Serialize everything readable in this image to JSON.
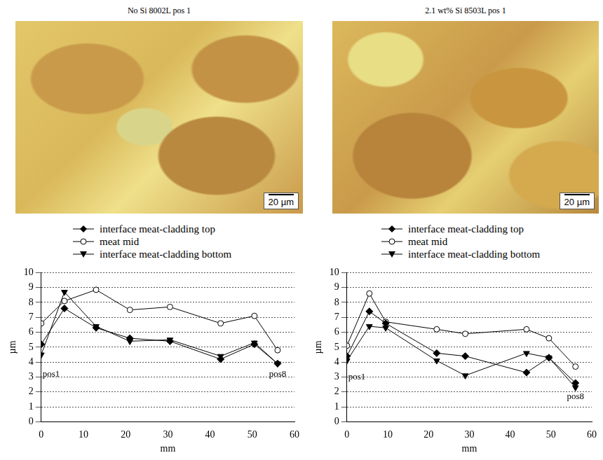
{
  "micrographs": [
    {
      "title": "No Si 8002L pos 1",
      "scale_bar": "20 µm"
    },
    {
      "title": "2.1 wt% Si 8503L pos 1",
      "scale_bar": "20 µm"
    }
  ],
  "chart_data": [
    {
      "type": "line",
      "x_label": "mm",
      "y_label": "µm",
      "xlim": [
        0,
        60
      ],
      "xticks": [
        0,
        10,
        20,
        30,
        40,
        50,
        60
      ],
      "ylim": [
        0,
        10
      ],
      "yticks": [
        0,
        1,
        2,
        3,
        4,
        5,
        6,
        7,
        8,
        9,
        10
      ],
      "grid": true,
      "legend": "top",
      "x": [
        0,
        5.5,
        13,
        21,
        30.5,
        42.5,
        50.5,
        56
      ],
      "series": [
        {
          "name": "interface meat-cladding top",
          "color": "#000000",
          "marker": "diamond",
          "values": [
            5.2,
            7.6,
            6.3,
            5.6,
            5.4,
            4.2,
            5.2,
            3.9
          ]
        },
        {
          "name": "meat mid",
          "color": "#000000",
          "marker": "circle_open",
          "values": [
            6.6,
            8.1,
            8.85,
            7.5,
            7.7,
            6.6,
            7.1,
            4.8
          ]
        },
        {
          "name": "interface meat-cladding bottom",
          "color": "#000000",
          "marker": "triangle_down",
          "values": [
            4.5,
            8.7,
            6.4,
            5.4,
            5.5,
            4.4,
            5.3,
            3.9
          ]
        }
      ],
      "annotations": [
        {
          "text": "pos1",
          "x": 0,
          "y": 3.2
        },
        {
          "text": "pos8",
          "x": 56,
          "y": 3.2
        }
      ]
    },
    {
      "type": "line",
      "x_label": "mm",
      "y_label": "µm",
      "xlim": [
        0,
        60
      ],
      "xticks": [
        0,
        10,
        20,
        30,
        40,
        50,
        60
      ],
      "ylim": [
        0,
        10
      ],
      "yticks": [
        0,
        1,
        2,
        3,
        4,
        5,
        6,
        7,
        8,
        9,
        10
      ],
      "grid": true,
      "legend": "top",
      "x": [
        0,
        5.5,
        9.5,
        22,
        29,
        44,
        49.5,
        56
      ],
      "series": [
        {
          "name": "interface meat-cladding top",
          "color": "#000000",
          "marker": "diamond",
          "values": [
            4.4,
            7.4,
            6.6,
            4.6,
            4.4,
            3.3,
            4.3,
            2.6
          ]
        },
        {
          "name": "meat mid",
          "color": "#000000",
          "marker": "circle_open",
          "values": [
            5.1,
            8.6,
            6.7,
            6.2,
            5.9,
            6.2,
            5.6,
            3.7
          ]
        },
        {
          "name": "interface meat-cladding bottom",
          "color": "#000000",
          "marker": "triangle_down",
          "values": [
            4.1,
            6.4,
            6.3,
            4.1,
            3.1,
            4.6,
            4.3,
            2.3
          ]
        }
      ],
      "annotations": [
        {
          "text": "pos1",
          "x": 0,
          "y": 3.0
        },
        {
          "text": "pos8",
          "x": 56,
          "y": 1.7
        }
      ]
    }
  ]
}
